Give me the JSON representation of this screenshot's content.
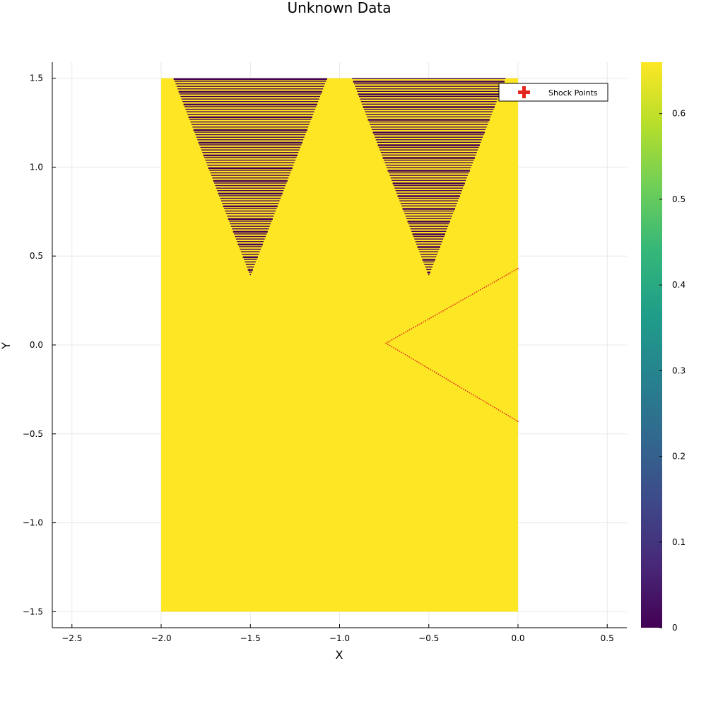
{
  "chart_data": {
    "type": "heatmap",
    "title": "Unknown Data",
    "xlabel": "X",
    "ylabel": "Y",
    "xlim": [
      -2.61,
      0.61
    ],
    "ylim": [
      -1.59,
      1.59
    ],
    "xticks": [
      -2.5,
      -2.0,
      -1.5,
      -1.0,
      -0.5,
      0.0,
      0.5
    ],
    "xtick_labels": [
      "−2.5",
      "−2.0",
      "−1.5",
      "−1.0",
      "−0.5",
      "0.0",
      "0.5"
    ],
    "yticks": [
      1.5,
      1.0,
      0.5,
      0.0,
      -0.5,
      -1.0,
      -1.5
    ],
    "ytick_labels": [
      "1.5",
      "1.0",
      "0.5",
      "0.0",
      "−0.5",
      "−1.0",
      "−1.5"
    ],
    "grid": true,
    "colormap": "viridis",
    "colorbar": {
      "range": [
        0,
        0.66
      ],
      "ticks": [
        0,
        0.1,
        0.2,
        0.3,
        0.4,
        0.5,
        0.6
      ],
      "tick_labels": [
        "0",
        "0.1",
        "0.2",
        "0.3",
        "0.4",
        "0.5",
        "0.6"
      ]
    },
    "field": {
      "x_range": [
        -2.0,
        0.0
      ],
      "y_range": [
        -1.5,
        1.5
      ],
      "background_value": 0.66,
      "background_color": "#fde725",
      "hatched_regions": [
        {
          "apex": [
            -1.5,
            0.39
          ],
          "top_left": [
            -1.93,
            1.5
          ],
          "top_right": [
            -1.07,
            1.5
          ]
        },
        {
          "apex": [
            -0.5,
            0.39
          ],
          "top_left": [
            -0.93,
            1.5
          ],
          "top_right": [
            -0.07,
            1.5
          ]
        }
      ],
      "hatch_value": 0.0,
      "hatch_color": "#440154"
    },
    "series": [
      {
        "name": "Shock Points",
        "marker": "cross",
        "color": "#e5261e",
        "segments": [
          {
            "from": [
              -0.74,
              0.01
            ],
            "to": [
              0.0,
              0.43
            ]
          },
          {
            "from": [
              -0.74,
              0.01
            ],
            "to": [
              0.0,
              -0.43
            ]
          }
        ]
      }
    ],
    "legend": {
      "position": "top-right",
      "entries": [
        "Shock Points"
      ]
    }
  }
}
